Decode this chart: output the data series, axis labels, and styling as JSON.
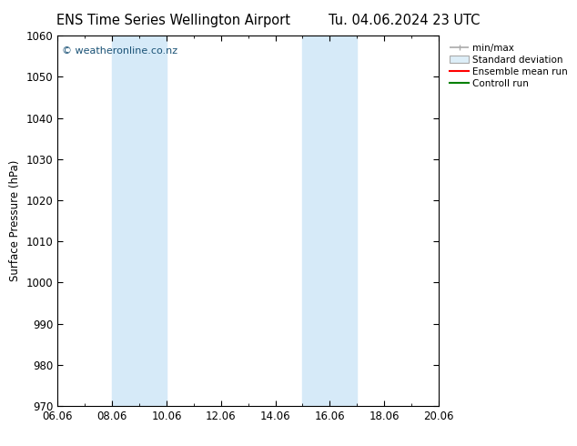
{
  "title_left": "ENS Time Series Wellington Airport",
  "title_right": "Tu. 04.06.2024 23 UTC",
  "ylabel": "Surface Pressure (hPa)",
  "ylim": [
    970,
    1060
  ],
  "yticks": [
    970,
    980,
    990,
    1000,
    1010,
    1020,
    1030,
    1040,
    1050,
    1060
  ],
  "xlim_start": 0,
  "xlim_end": 14,
  "xtick_labels": [
    "06.06",
    "08.06",
    "10.06",
    "12.06",
    "14.06",
    "16.06",
    "18.06",
    "20.06"
  ],
  "xtick_positions": [
    0,
    2,
    4,
    6,
    8,
    10,
    12,
    14
  ],
  "shade_bands": [
    {
      "xmin": 2.0,
      "xmax": 4.0
    },
    {
      "xmin": 9.0,
      "xmax": 11.0
    }
  ],
  "shade_color": "#d6eaf8",
  "watermark": "© weatheronline.co.nz",
  "legend_items": [
    "min/max",
    "Standard deviation",
    "Ensemble mean run",
    "Controll run"
  ],
  "legend_colors": [
    "#aaaaaa",
    "#cccccc",
    "#ff0000",
    "#008000"
  ],
  "background_color": "#ffffff",
  "plot_bg_color": "#ffffff",
  "border_color": "#000000",
  "title_fontsize": 10.5,
  "axis_fontsize": 8.5,
  "watermark_color": "#1a5276",
  "tick_direction": "in"
}
